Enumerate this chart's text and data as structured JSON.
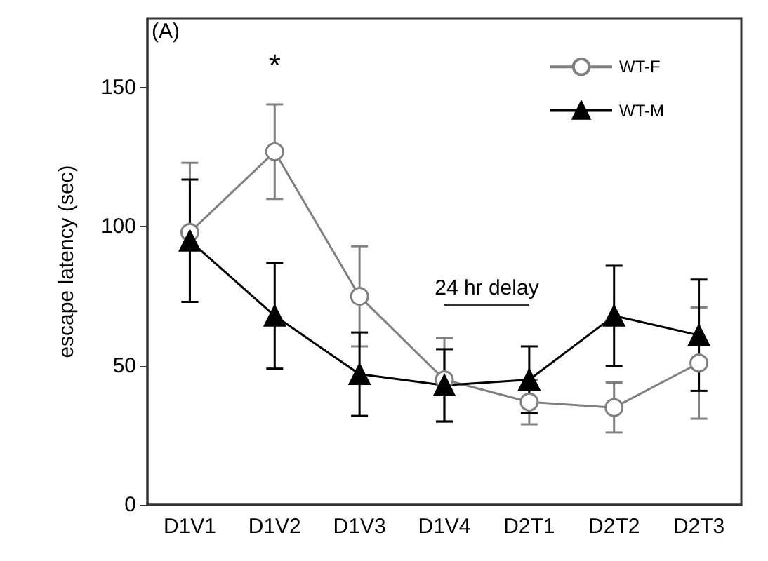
{
  "chart_data": {
    "type": "line",
    "ylabel": "escape latency (sec)",
    "categories": [
      "D1V1",
      "D1V2",
      "D1V3",
      "D1V4",
      "D2T1",
      "D2T2",
      "D2T3"
    ],
    "series": [
      {
        "name": "WT-F",
        "color": "#808080",
        "marker": "circle",
        "values": [
          98,
          127,
          75,
          45,
          37,
          35,
          51
        ],
        "errors": [
          25,
          17,
          18,
          15,
          8,
          9,
          20
        ]
      },
      {
        "name": "WT-M",
        "color": "#000000",
        "marker": "triangle",
        "values": [
          95,
          68,
          47,
          43,
          45,
          68,
          61
        ],
        "errors": [
          22,
          19,
          15,
          13,
          12,
          18,
          20
        ]
      }
    ],
    "ylim": [
      0,
      175
    ],
    "yticks": [
      0,
      50,
      100,
      150
    ],
    "grid": false,
    "legend": "top right",
    "annotations": [
      "(A)",
      "*",
      "24 hr delay"
    ]
  }
}
